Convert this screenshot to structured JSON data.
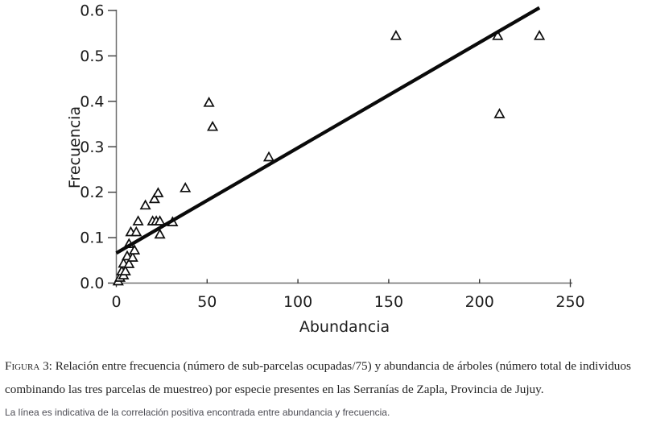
{
  "chart_data": {
    "type": "scatter",
    "title": "",
    "xlabel": "Abundancia",
    "ylabel": "Frecuencia",
    "xlim": [
      0,
      250
    ],
    "ylim": [
      0,
      0.6
    ],
    "grid": false,
    "legend": "none",
    "marker": "open-triangle",
    "x_ticks": [
      0,
      50,
      100,
      150,
      200,
      250
    ],
    "x_tick_labels": [
      "0",
      "50",
      "100",
      "150",
      "200",
      "250"
    ],
    "y_ticks": [
      0,
      0.1,
      0.2,
      0.3,
      0.4,
      0.5,
      0.6
    ],
    "y_tick_labels": [
      "0.0",
      "0.1",
      "0.2",
      "0.3",
      "0.4",
      "0.5",
      "0.6"
    ],
    "points": [
      [
        1,
        0.005
      ],
      [
        2,
        0.013
      ],
      [
        4,
        0.018
      ],
      [
        3,
        0.027
      ],
      [
        5,
        0.027
      ],
      [
        4,
        0.044
      ],
      [
        7,
        0.043
      ],
      [
        6,
        0.06
      ],
      [
        9,
        0.057
      ],
      [
        10,
        0.073
      ],
      [
        7,
        0.087
      ],
      [
        8,
        0.113
      ],
      [
        11,
        0.113
      ],
      [
        24,
        0.108
      ],
      [
        12,
        0.137
      ],
      [
        20,
        0.137
      ],
      [
        22,
        0.137
      ],
      [
        24,
        0.137
      ],
      [
        31,
        0.135
      ],
      [
        16,
        0.172
      ],
      [
        21,
        0.186
      ],
      [
        23,
        0.199
      ],
      [
        38,
        0.21
      ],
      [
        51,
        0.398
      ],
      [
        53,
        0.345
      ],
      [
        84,
        0.278
      ],
      [
        154,
        0.545
      ],
      [
        210,
        0.545
      ],
      [
        233,
        0.545
      ],
      [
        211,
        0.373
      ]
    ],
    "trendline": {
      "x1": 0,
      "y1": 0.066,
      "x2": 233,
      "y2": 0.606
    },
    "colors": {
      "marker_stroke": "#0d0d0d",
      "marker_fill": "#ffffff",
      "trendline": "#0a0a0a",
      "axis_line": "#6e6e6e",
      "tick": "#3a3a3a",
      "text": "#1c1c1c"
    }
  },
  "caption": {
    "prefix": "Figura 3:",
    "line1_rest": "Relación entre frecuencia (número de sub-parcelas ocupadas/75) y abundancia de árboles (número total de individuos",
    "line2": "combinando las tres parcelas de muestreo) por especie presentes en las Serranías de Zapla, Provincia de Jujuy.",
    "note": "La línea es indicativa de la correlación positiva encontrada entre abundancia y frecuencia."
  }
}
